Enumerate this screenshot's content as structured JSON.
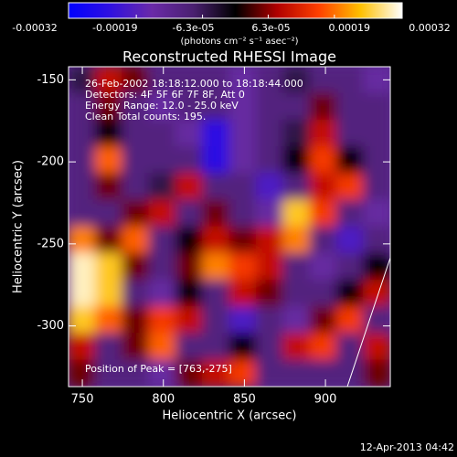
{
  "chart_data": {
    "type": "heatmap",
    "title": "Reconstructed RHESSI Image",
    "xlabel": "Heliocentric X (arcsec)",
    "ylabel": "Heliocentric Y (arcsec)",
    "annotations": [
      "26-Feb-2002 18:18:12.000 to 18:18:44.000",
      "Detectors: 4F 5F 6F 7F 8F, Att 0",
      "Energy Range: 12.0 - 25.0 keV",
      "Clean    Total counts: 195."
    ],
    "peak_label": "Position of Peak = [763,-275]",
    "footer": "12-Apr-2013 04:42",
    "colorbar_label": "(photons cm⁻² s⁻¹ asec⁻²)",
    "clim": [
      -0.00032,
      0.00032
    ],
    "cticks": [
      -0.00032,
      -0.00019,
      {
        "value": -6.3e-05,
        "label": "-6.3e-05"
      },
      {
        "value": 6.3e-05,
        "label": "6.3e-05"
      },
      0.00019,
      0.00032
    ],
    "colorscale": [
      "#0000ff",
      "#3010e0",
      "#6a2aa8",
      "#4a2070",
      "#000000",
      "#b00000",
      "#ff4000",
      "#ffc000",
      "#ffffff"
    ],
    "xlim": [
      741.5,
      940
    ],
    "xticks": [
      750,
      800,
      850,
      900
    ],
    "ylim": [
      -337,
      -142
    ],
    "yticks": [
      -150,
      -200,
      -250,
      -300
    ],
    "z": [
      [
        -5e-05,
        0.0001,
        5e-05,
        -0.0001,
        -0.0001,
        -0.0001,
        -0.00015,
        -0.0001,
        -5e-05,
        -0.0001,
        -0.0001,
        -0.00015
      ],
      [
        -0.0001,
        5e-05,
        -0.0001,
        -0.00015,
        -0.0001,
        -0.0001,
        -0.00015,
        -0.0001,
        -0.0001,
        5e-05,
        -0.0001,
        -0.0001
      ],
      [
        -0.0001,
        0,
        -0.0001,
        -0.0001,
        -0.00015,
        -0.00025,
        -0.00015,
        -0.0001,
        -5e-05,
        0.0001,
        -0.0001,
        -0.0001
      ],
      [
        -0.0001,
        0.00018,
        -0.0001,
        -0.0001,
        -0.0001,
        -0.00025,
        -0.00015,
        -0.0001,
        0,
        0.00015,
        0,
        -0.0001
      ],
      [
        -0.0001,
        5e-05,
        -0.0001,
        -5e-05,
        0.0001,
        -0.0001,
        -0.0001,
        -0.0002,
        -0.0001,
        0.0001,
        0.00015,
        -0.0001
      ],
      [
        -0.0001,
        -0.0001,
        5e-05,
        0.0001,
        -0.0001,
        5e-05,
        -0.0001,
        -0.00015,
        0.00025,
        0.00015,
        -0.0001,
        -0.00015
      ],
      [
        0.0002,
        5e-05,
        0.00018,
        -0.0001,
        0,
        0.0001,
        5e-05,
        0.0001,
        0.0002,
        -0.0001,
        -0.0002,
        -0.0001
      ],
      [
        0.0003,
        0.00025,
        5e-05,
        -0.0001,
        5e-05,
        0.0002,
        0.00015,
        0.0001,
        -0.0001,
        -0.00015,
        -0.0001,
        0
      ],
      [
        0.0003,
        0.00025,
        -0.0001,
        -0.00015,
        0,
        -0.0001,
        0.0001,
        5e-05,
        -0.0001,
        -0.0001,
        0,
        0.0001
      ],
      [
        0.00025,
        0.00018,
        5e-05,
        0.00015,
        0.0001,
        -0.0001,
        -0.0002,
        -0.0001,
        -0.00015,
        5e-05,
        0.00015,
        -0.0001
      ],
      [
        0.0001,
        -0.0001,
        5e-05,
        0.00018,
        -0.0001,
        -0.0001,
        0,
        -0.0001,
        0.0001,
        0.00015,
        -0.0001,
        0.0001
      ],
      [
        5e-05,
        -0.0001,
        -0.0001,
        -0.00015,
        5e-05,
        0.0001,
        0.00015,
        -0.0001,
        -0.0001,
        -0.0001,
        -0.0001,
        5e-05
      ]
    ]
  }
}
